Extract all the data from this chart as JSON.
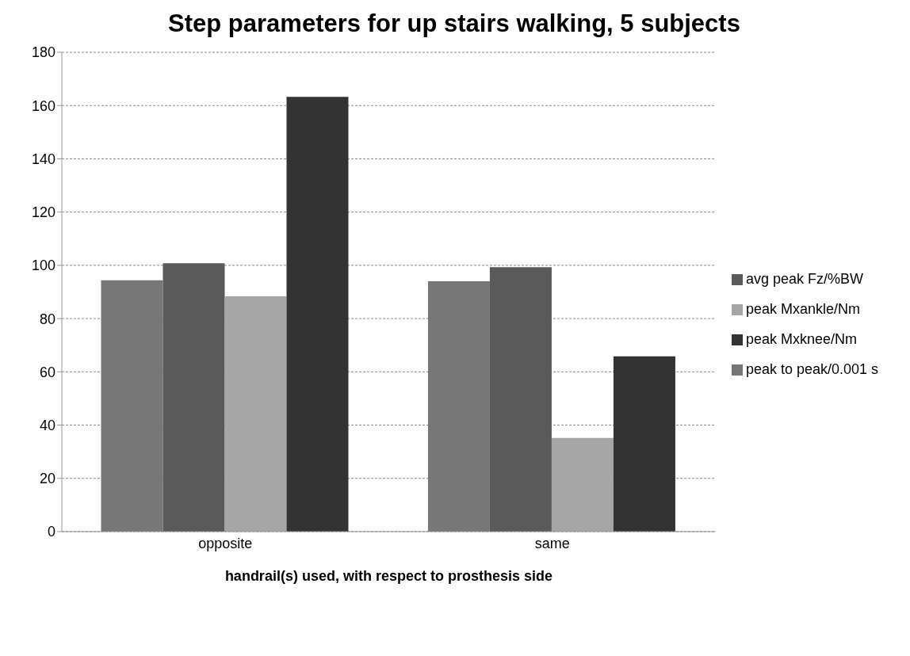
{
  "chart_data": {
    "type": "bar",
    "title": "Step parameters for up stairs walking, 5 subjects",
    "xlabel": "handrail(s) used, with respect to prosthesis side",
    "categories": [
      "opposite",
      "same"
    ],
    "series": [
      {
        "name": "peak to peak/0.001 s",
        "color": "#777777",
        "values": [
          94.4,
          94.0
        ]
      },
      {
        "name": "avg peak Fz/%BW",
        "color": "#5a5a5a",
        "values": [
          100.8,
          99.3
        ]
      },
      {
        "name": "peak Mxankle/Nm",
        "color": "#a6a6a6",
        "values": [
          88.4,
          35.2
        ]
      },
      {
        "name": "peak Mxknee/Nm",
        "color": "#333333",
        "values": [
          163.3,
          65.8
        ]
      }
    ],
    "ylim": [
      0,
      180
    ],
    "yticks": [
      0,
      20,
      40,
      60,
      80,
      100,
      120,
      140,
      160,
      180
    ],
    "grid": "y",
    "legend": "right"
  }
}
